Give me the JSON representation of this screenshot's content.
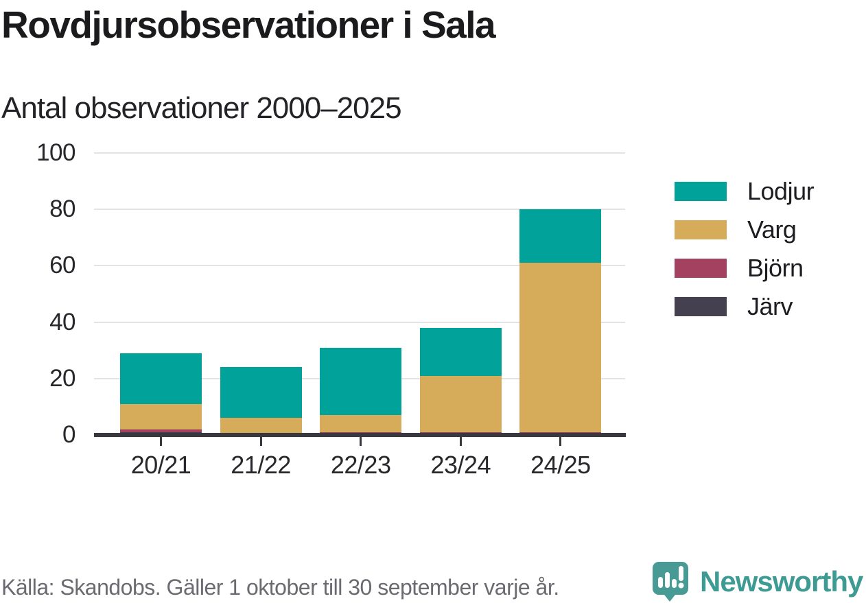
{
  "title": "Rovdjursobservationer i Sala",
  "subtitle": "Antal observationer 2000–2025",
  "source": "Källa: Skandobs. Gäller 1 oktober till 30 september varje år.",
  "brand": {
    "name": "Newsworthy",
    "logo_icon": "newsworthy-speech-bubble-bar-chart-icon",
    "logo_color": "#479b94",
    "wordmark_color": "#3e9b94"
  },
  "colors": {
    "lodjur": "#00a29a",
    "varg": "#d6ac5b",
    "bjorn": "#a54160",
    "jarv": "#444050",
    "axis": "#38383e",
    "gridline": "#e3e3e4",
    "text": "#1c1c1f",
    "muted_text": "#6a6a70"
  },
  "chart_data": {
    "type": "bar",
    "stacked": true,
    "title": "Rovdjursobservationer i Sala",
    "subtitle": "Antal observationer 2000–2025",
    "xlabel": "",
    "ylabel": "",
    "categories": [
      "20/21",
      "21/22",
      "22/23",
      "23/24",
      "24/25"
    ],
    "series": [
      {
        "name": "Lodjur",
        "color": "#00a29a",
        "values": [
          18,
          18,
          24,
          17,
          19
        ]
      },
      {
        "name": "Varg",
        "color": "#d6ac5b",
        "values": [
          9,
          6,
          6,
          20,
          60
        ]
      },
      {
        "name": "Björn",
        "color": "#a54160",
        "values": [
          1,
          0,
          1,
          1,
          1
        ]
      },
      {
        "name": "Järv",
        "color": "#444050",
        "values": [
          1,
          0,
          0,
          0,
          0
        ]
      }
    ],
    "stack_order_bottom_to_top": [
      "Järv",
      "Björn",
      "Varg",
      "Lodjur"
    ],
    "totals": [
      29,
      24,
      31,
      38,
      80
    ],
    "ylim": [
      0,
      100
    ],
    "yticks": [
      0,
      20,
      40,
      60,
      80,
      100
    ],
    "grid": "horizontal",
    "legend_position": "right"
  }
}
